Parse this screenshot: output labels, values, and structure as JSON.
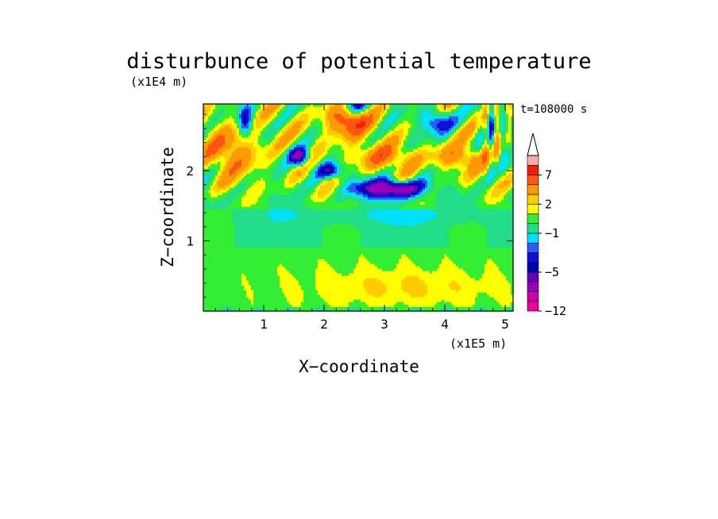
{
  "chart_data": {
    "type": "heatmap",
    "title": "disturbunce of potential temperature",
    "z_scale_label": "(x1E4 m)",
    "x_scale_label": "(x1E5 m)",
    "xlabel": "X−coordinate",
    "ylabel": "Z−coordinate",
    "time_label": "t=108000 s",
    "xlim": [
      0,
      5.13
    ],
    "ylim": [
      0,
      2.95
    ],
    "x_ticks": [
      "1",
      "2",
      "3",
      "4",
      "5"
    ],
    "z_ticks": [
      "1",
      "2"
    ],
    "colorbar": {
      "levels": [
        -12,
        -10,
        -8,
        -6,
        -5,
        -4,
        -3,
        -2,
        -1,
        0,
        1,
        2,
        3,
        5,
        7,
        9,
        11
      ],
      "colors": [
        "#ee0099",
        "#cc00aa",
        "#9900bb",
        "#6600bb",
        "#0000aa",
        "#1010dd",
        "#2b5cf5",
        "#00e0ff",
        "#22dd88",
        "#33ee33",
        "#ffff00",
        "#ffcc00",
        "#ff9900",
        "#ff5511",
        "#ee2200",
        "#ffaaaa"
      ],
      "tick_labels": [
        "7",
        "2",
        "−1",
        "−5",
        "−12"
      ],
      "extend": "max"
    },
    "regions": [
      {
        "level": 0,
        "description": "green band",
        "x_range": [
          0,
          5.13
        ],
        "z_range": [
          0.95,
          1.45
        ]
      },
      {
        "level": 1,
        "description": "yellow lower layer",
        "x_range": [
          0,
          5.13
        ],
        "z_range": [
          0,
          0.9
        ]
      },
      {
        "level": 2,
        "description": "orange core",
        "x_range": [
          2.2,
          4.7
        ],
        "z_range": [
          0.2,
          0.55
        ]
      },
      {
        "level": 7,
        "description": "positive anomaly",
        "x": 2.4,
        "z": 2.75
      },
      {
        "level": -5,
        "description": "negative anomaly",
        "x": 3.1,
        "z": 1.75
      },
      {
        "level": -5,
        "description": "negative anomaly",
        "x": 2.5,
        "z": 2.95
      },
      {
        "level": -5,
        "description": "negative anomaly",
        "x": 1.6,
        "z": 2.2
      }
    ]
  }
}
